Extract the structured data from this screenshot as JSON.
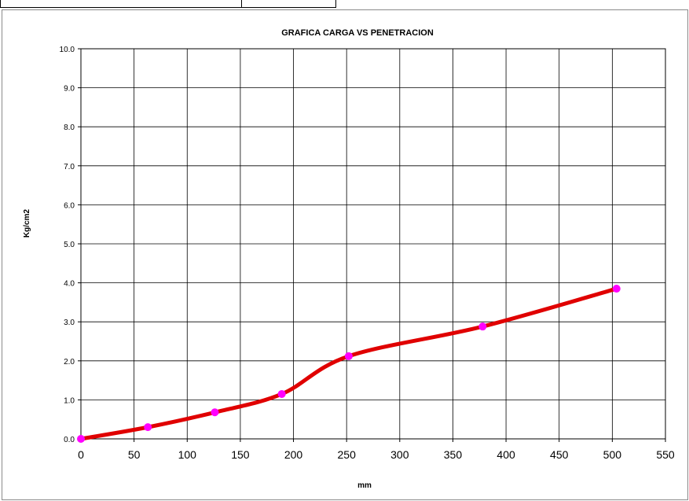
{
  "chart_data": {
    "type": "line",
    "title": "GRAFICA CARGA VS PENETRACION",
    "xlabel": "mm",
    "ylabel": "Kg/cm2",
    "xlim": [
      0,
      550
    ],
    "ylim": [
      0,
      10
    ],
    "xticks": [
      "0",
      "50",
      "100",
      "150",
      "200",
      "250",
      "300",
      "350",
      "400",
      "450",
      "500",
      "550"
    ],
    "yticks": [
      "0.0",
      "1.0",
      "2.0",
      "3.0",
      "4.0",
      "5.0",
      "6.0",
      "7.0",
      "8.0",
      "9.0",
      "10.0"
    ],
    "grid": true,
    "line_color": "#e00000",
    "marker_color": "#ff00ff",
    "series": [
      {
        "x": [
          0,
          63,
          126,
          189,
          252,
          378,
          504
        ],
        "y": [
          0.0,
          0.3,
          0.68,
          1.15,
          2.12,
          2.88,
          3.85
        ]
      }
    ]
  }
}
